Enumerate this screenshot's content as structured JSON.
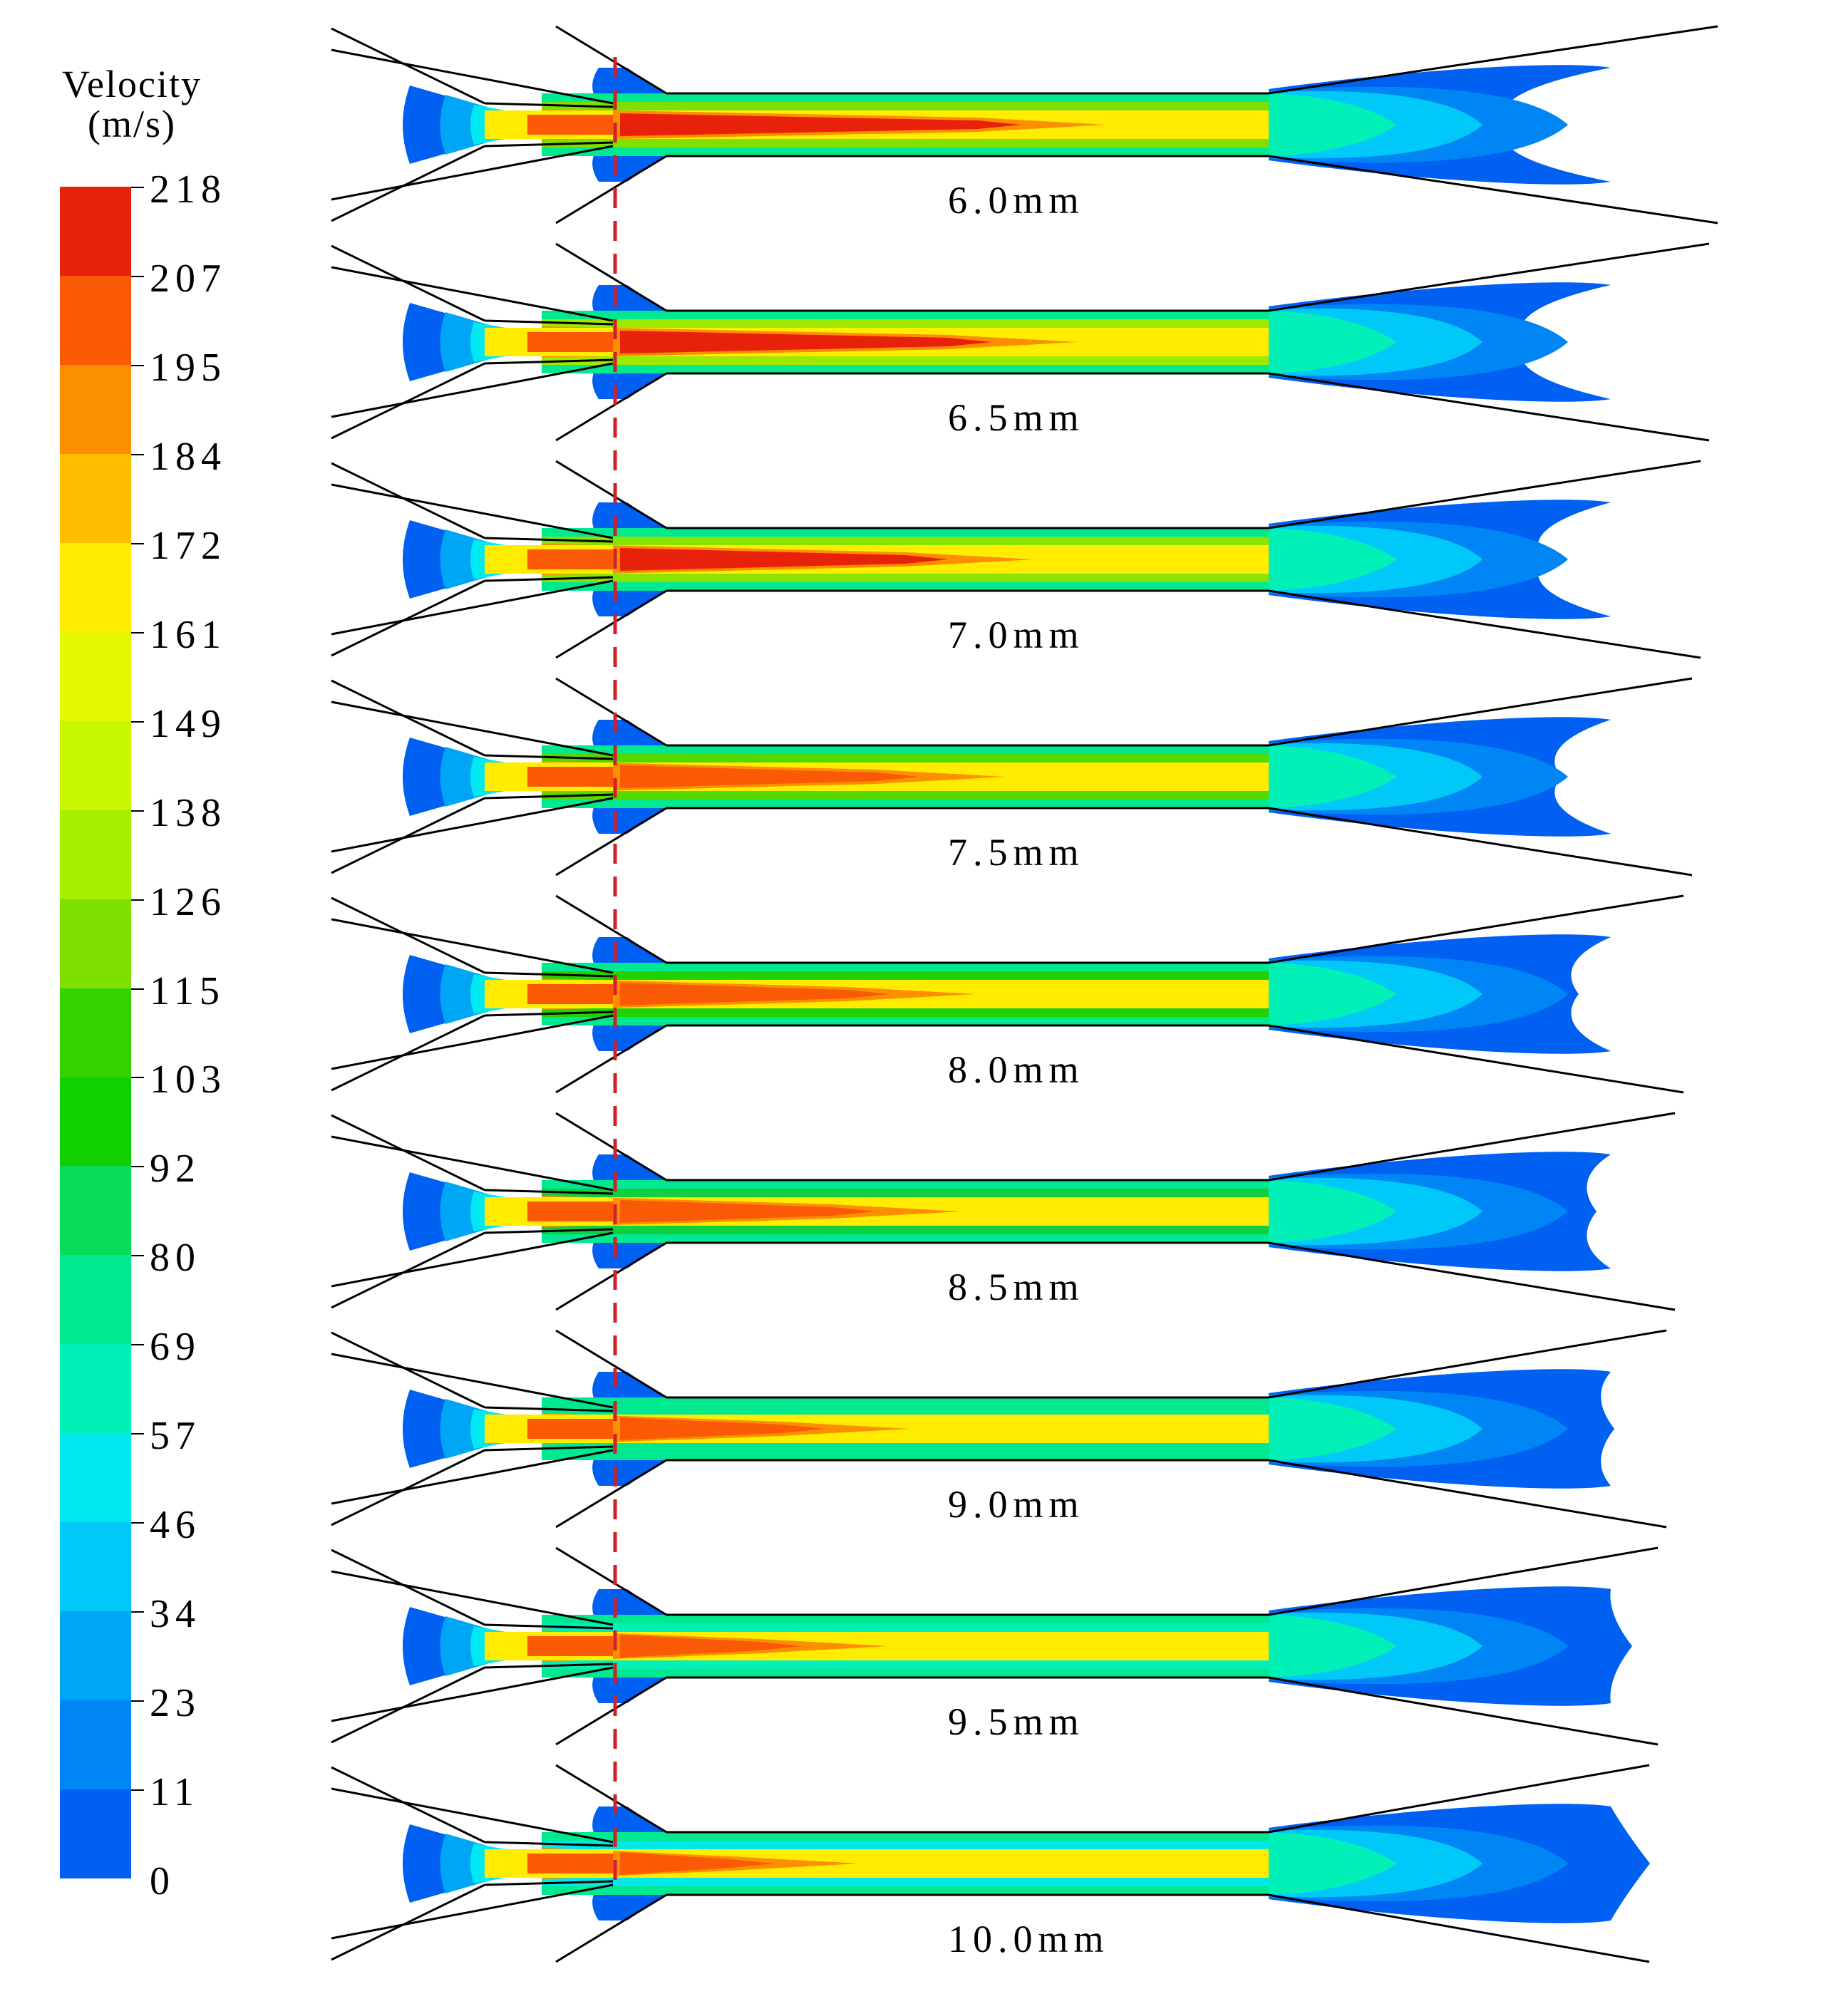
{
  "legend": {
    "title_line1": "Velocity",
    "title_line2": "(m/s)",
    "ticks": [
      "218",
      "207",
      "195",
      "184",
      "172",
      "161",
      "149",
      "138",
      "126",
      "115",
      "103",
      "92",
      "80",
      "69",
      "57",
      "46",
      "34",
      "23",
      "11",
      "0"
    ],
    "band_colors": [
      "#e8220a",
      "#fa5a05",
      "#fb8f00",
      "#fdbf00",
      "#ffec00",
      "#e6f800",
      "#c8f800",
      "#a7ef00",
      "#7fe000",
      "#33d300",
      "#10d000",
      "#08dc58",
      "#00e890",
      "#00f0b8",
      "#00e8f0",
      "#00c8f8",
      "#00a6f6",
      "#0086f4",
      "#0060f2",
      "#0020ec"
    ]
  },
  "cases": [
    {
      "label": "6.0mm",
      "core_color": "#e8220a",
      "core_len": 0.6,
      "exit_color": "#7fe000"
    },
    {
      "label": "6.5mm",
      "core_color": "#e8220a",
      "core_len": 0.56,
      "exit_color": "#9fe800"
    },
    {
      "label": "7.0mm",
      "core_color": "#e8220a",
      "core_len": 0.5,
      "exit_color": "#88e400"
    },
    {
      "label": "7.5mm",
      "core_color": "#fa5a05",
      "core_len": 0.46,
      "exit_color": "#55d800"
    },
    {
      "label": "8.0mm",
      "core_color": "#fa5a05",
      "core_len": 0.42,
      "exit_color": "#22d100"
    },
    {
      "label": "8.5mm",
      "core_color": "#fa5a05",
      "core_len": 0.4,
      "exit_color": "#10d040"
    },
    {
      "label": "9.0mm",
      "core_color": "#fa5a05",
      "core_len": 0.33,
      "exit_color": "#00e890"
    },
    {
      "label": "9.5mm",
      "core_color": "#fa5a05",
      "core_len": 0.3,
      "exit_color": "#00f0b8"
    },
    {
      "label": "10.0mm",
      "core_color": "#fa5a05",
      "core_len": 0.26,
      "exit_color": "#00e8e8"
    }
  ],
  "colors": {
    "dashed_line": "#d0202a",
    "outline": "#000000"
  }
}
